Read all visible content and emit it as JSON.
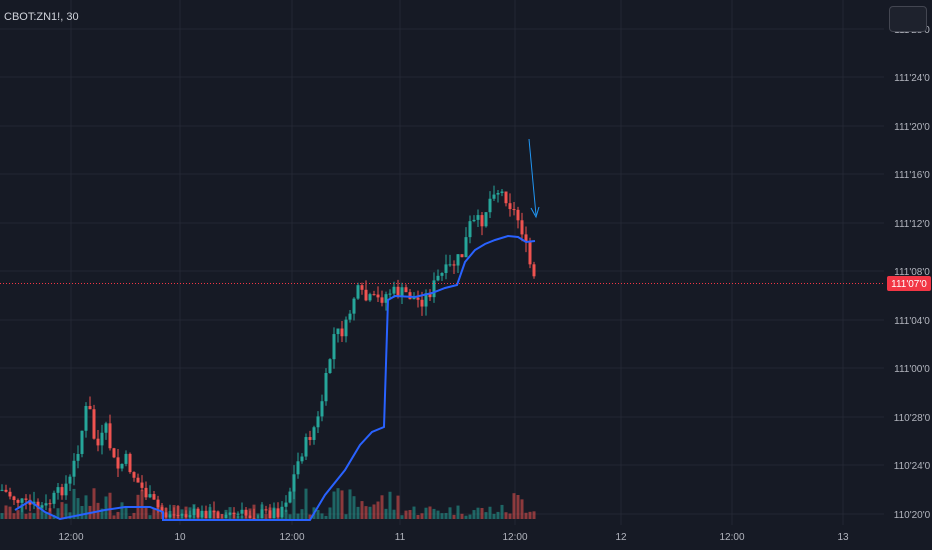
{
  "header": {
    "symbol_label": "CBOT:ZN1!, 30"
  },
  "price_axis": {
    "labels": [
      "111'28'0",
      "111'24'0",
      "111'20'0",
      "111'16'0",
      "111'12'0",
      "111'08'0",
      "111'04'0",
      "111'00'0",
      "110'28'0",
      "110'24'0",
      "110'20'0"
    ],
    "current_price_label": "111'07'0"
  },
  "time_axis": {
    "labels": [
      "12:00",
      "10",
      "12:00",
      "11",
      "12:00",
      "12",
      "12:00",
      "13"
    ]
  },
  "colors": {
    "background": "#161a25",
    "grid": "#232734",
    "up": "#26a69a",
    "down": "#ef5350",
    "vwap": "#2962ff",
    "price_line": "#f23645",
    "arrow": "#2196f3",
    "axis_text": "#b2b5be"
  }
}
